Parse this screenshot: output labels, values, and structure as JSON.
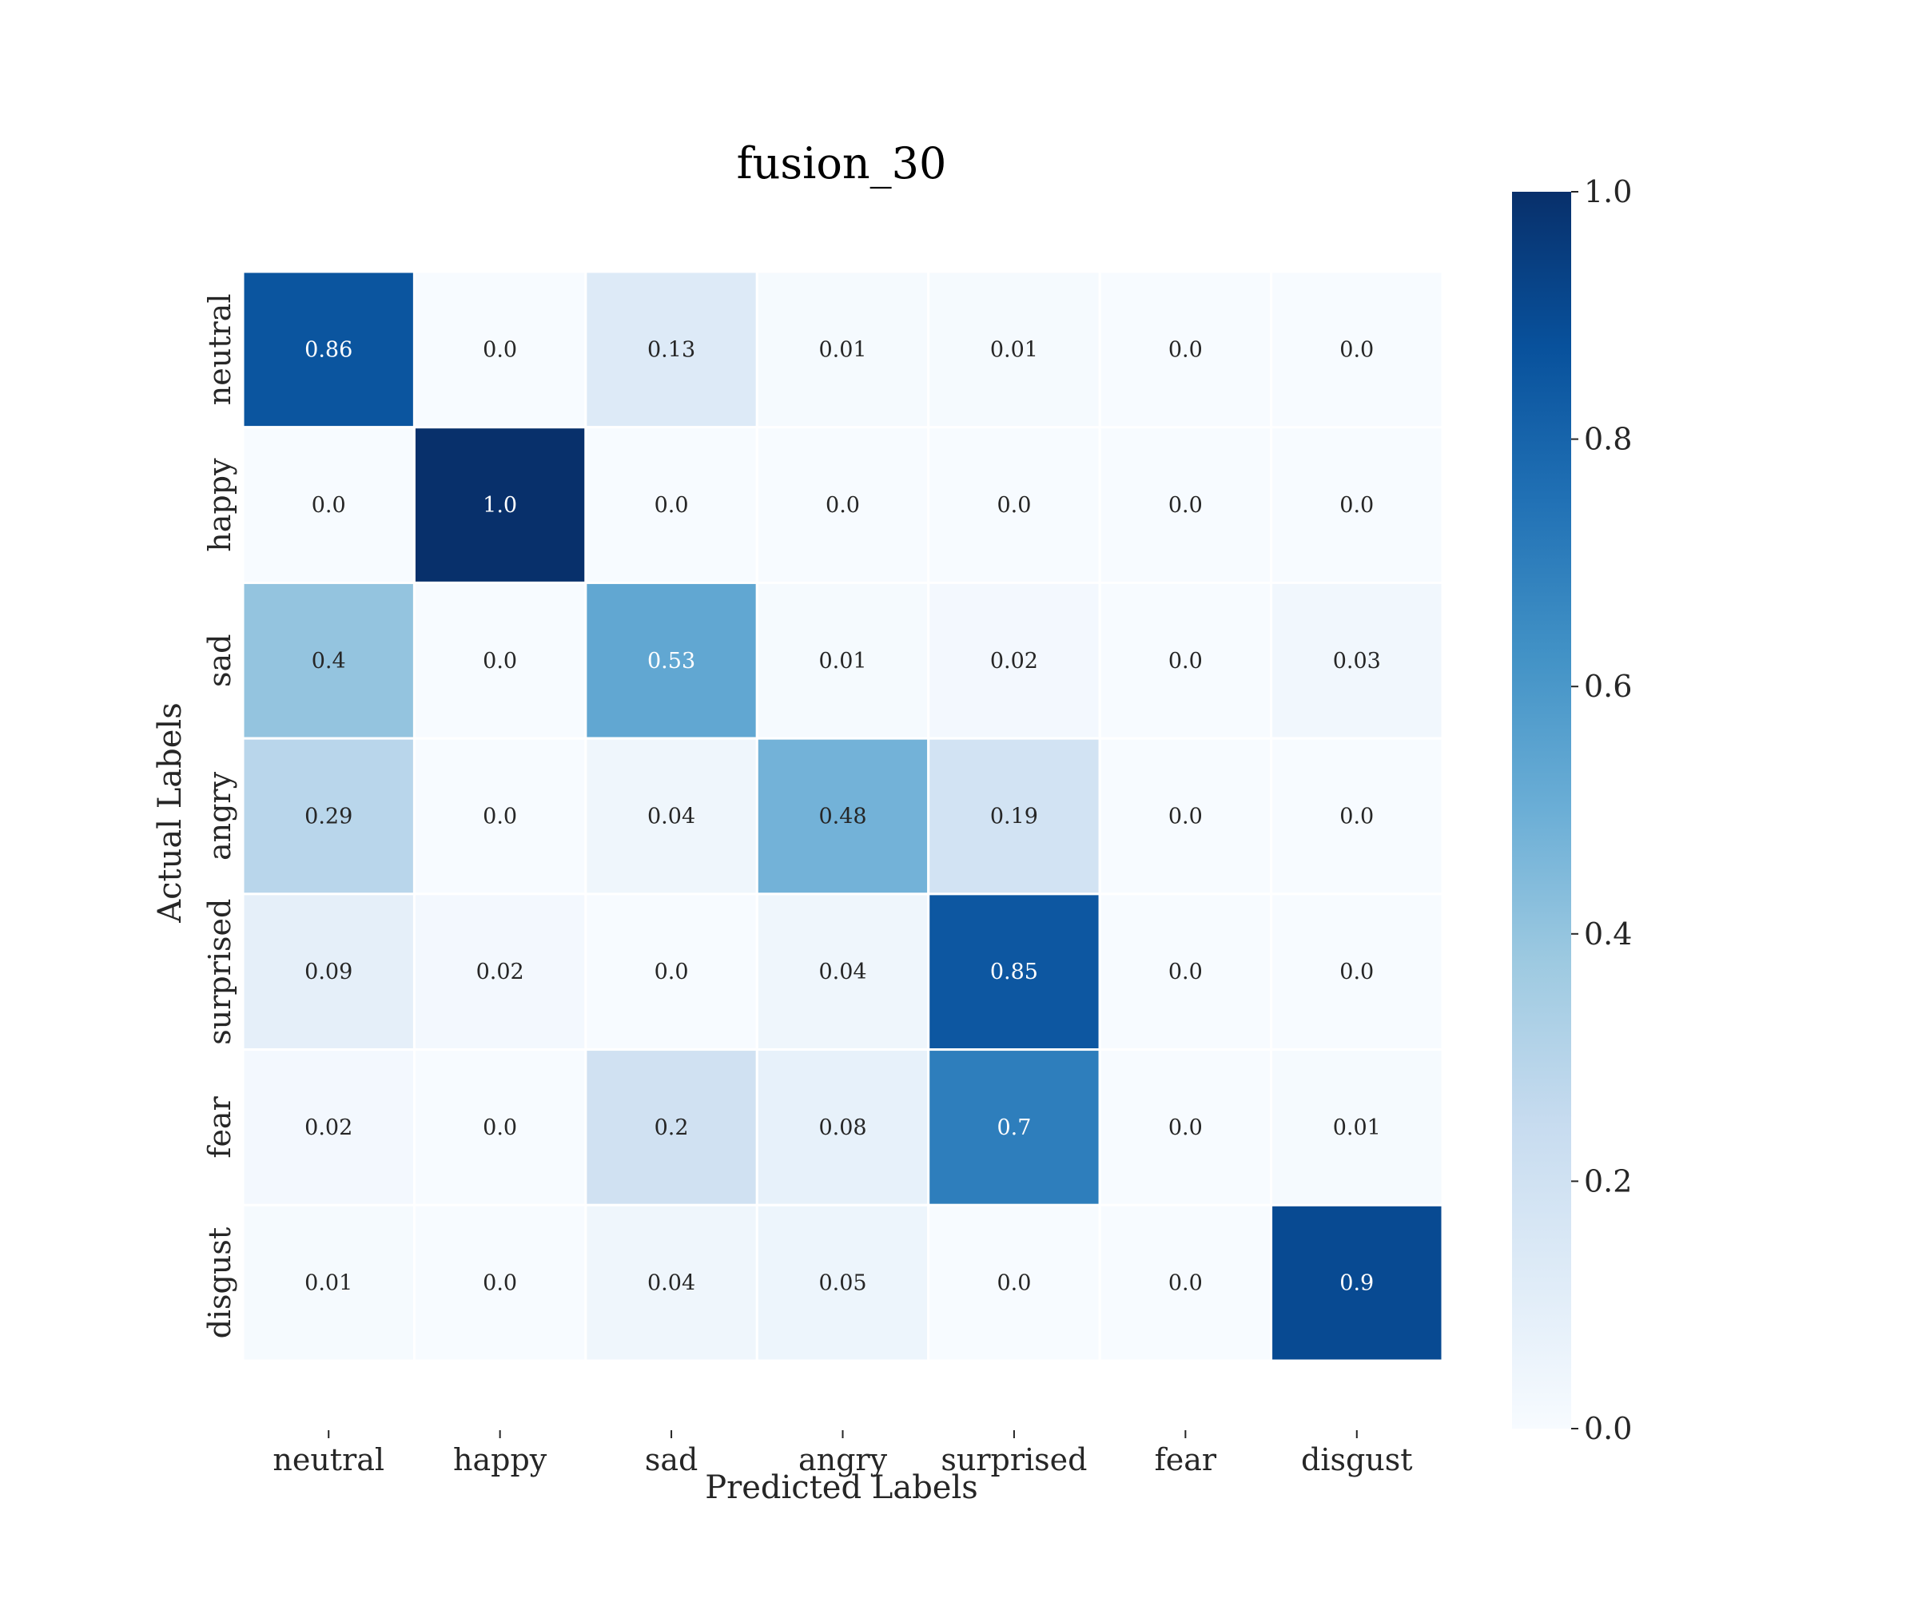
{
  "chart_data": {
    "type": "heatmap",
    "title": "fusion_30",
    "xlabel": "Predicted Labels",
    "ylabel": "Actual Labels",
    "x_categories": [
      "neutral",
      "happy",
      "sad",
      "angry",
      "surprised",
      "fear",
      "disgust"
    ],
    "y_categories": [
      "neutral",
      "happy",
      "sad",
      "angry",
      "surprised",
      "fear",
      "disgust"
    ],
    "values": [
      [
        0.86,
        0.0,
        0.13,
        0.01,
        0.01,
        0.0,
        0.0
      ],
      [
        0.0,
        1.0,
        0.0,
        0.0,
        0.0,
        0.0,
        0.0
      ],
      [
        0.4,
        0.0,
        0.53,
        0.01,
        0.02,
        0.0,
        0.03
      ],
      [
        0.29,
        0.0,
        0.04,
        0.48,
        0.19,
        0.0,
        0.0
      ],
      [
        0.09,
        0.02,
        0.0,
        0.04,
        0.85,
        0.0,
        0.0
      ],
      [
        0.02,
        0.0,
        0.2,
        0.08,
        0.7,
        0.0,
        0.01
      ],
      [
        0.01,
        0.0,
        0.04,
        0.05,
        0.0,
        0.0,
        0.9
      ]
    ],
    "value_labels": [
      [
        "0.86",
        "0.0",
        "0.13",
        "0.01",
        "0.01",
        "0.0",
        "0.0"
      ],
      [
        "0.0",
        "1.0",
        "0.0",
        "0.0",
        "0.0",
        "0.0",
        "0.0"
      ],
      [
        "0.4",
        "0.0",
        "0.53",
        "0.01",
        "0.02",
        "0.0",
        "0.03"
      ],
      [
        "0.29",
        "0.0",
        "0.04",
        "0.48",
        "0.19",
        "0.0",
        "0.0"
      ],
      [
        "0.09",
        "0.02",
        "0.0",
        "0.04",
        "0.85",
        "0.0",
        "0.0"
      ],
      [
        "0.02",
        "0.0",
        "0.2",
        "0.08",
        "0.7",
        "0.0",
        "0.01"
      ],
      [
        "0.01",
        "0.0",
        "0.04",
        "0.05",
        "0.0",
        "0.0",
        "0.9"
      ]
    ],
    "colormap": "Blues",
    "color_range": [
      0.0,
      1.0
    ],
    "colorbar": {
      "ticks": [
        0.0,
        0.2,
        0.4,
        0.6,
        0.8,
        1.0
      ],
      "tick_labels": [
        "0.0",
        "0.2",
        "0.4",
        "0.6",
        "0.8",
        "1.0"
      ]
    },
    "colors": {
      "low": "#f7fbff",
      "high": "#08306b",
      "cell_border": "#ffffff",
      "text_dark": "#262626",
      "text_light": "#ffffff"
    }
  }
}
